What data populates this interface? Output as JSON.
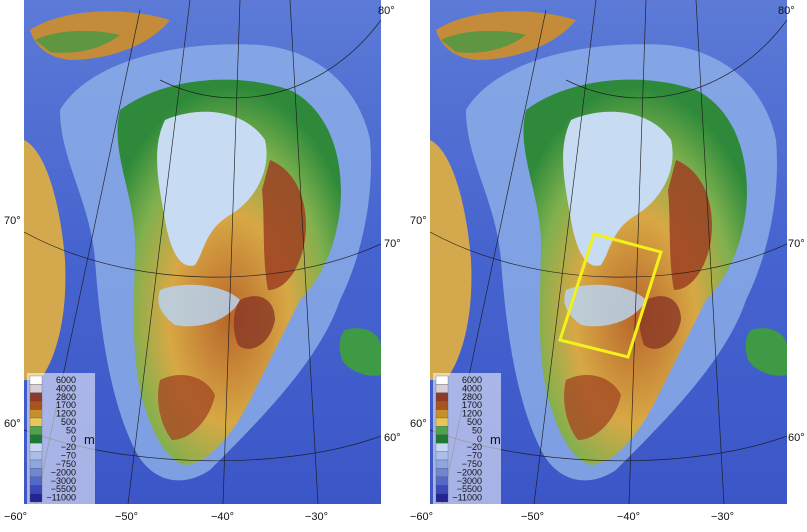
{
  "panels": [
    {
      "name": "left",
      "highlight_box": false,
      "longitude_labels": [
        "−60°",
        "−50°",
        "−40°",
        "−30°"
      ],
      "latitude_labels": {
        "top_right": "80°",
        "left_upper": "70°",
        "right_upper": "70°",
        "left_lower": "60°",
        "right_lower": "60°"
      }
    },
    {
      "name": "right",
      "highlight_box": true,
      "highlight_color": "#f2f21a",
      "longitude_labels": [
        "−60°",
        "−50°",
        "−40°",
        "−30°"
      ],
      "latitude_labels": {
        "top_right": "80°",
        "left_upper": "70°",
        "right_upper": "70°",
        "left_lower": "60°",
        "right_lower": "60°"
      }
    }
  ],
  "legend": {
    "unit": "m",
    "values": [
      "6000",
      "4000",
      "2800",
      "1700",
      "1200",
      "500",
      "50",
      "0",
      "−20",
      "−70",
      "−750",
      "−2000",
      "−3000",
      "−5500",
      "−11000"
    ],
    "colors": [
      "#ffffff",
      "#d9d0d6",
      "#8b3a2b",
      "#a8541c",
      "#c8902c",
      "#e6c75a",
      "#4fa34b",
      "#1e7a32",
      "#c9d7f2",
      "#a9bfea",
      "#8ea6e0",
      "#6f86d4",
      "#5468c8",
      "#3c48b6",
      "#23258f"
    ]
  },
  "colors": {
    "ocean_deep": "#3a52c8",
    "ocean_shallow": "#8fb1e8",
    "lowland": "#2f8a3a",
    "midland": "#e6c75a",
    "highland": "#9c3f22",
    "ice": "#c7dcf3"
  }
}
